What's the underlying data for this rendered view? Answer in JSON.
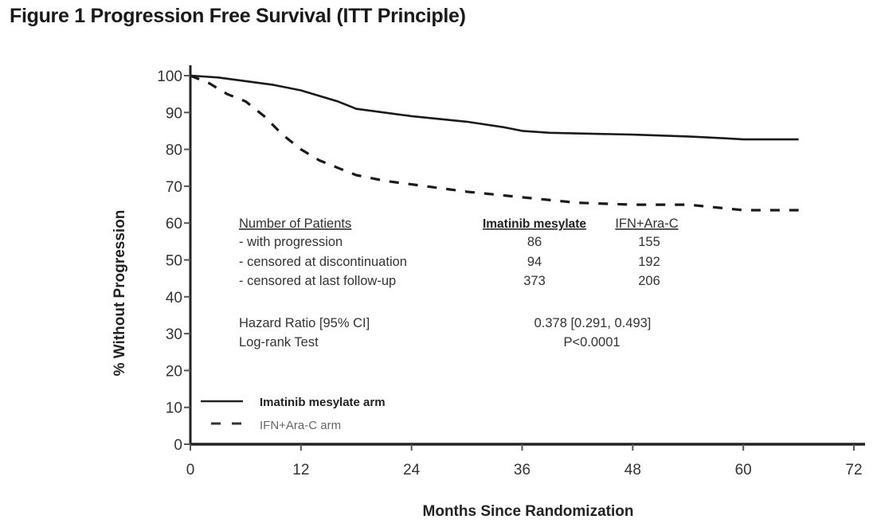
{
  "figure": {
    "title": "Figure 1 Progression Free Survival (ITT Principle)"
  },
  "chart_data": {
    "type": "line",
    "title": "Figure 1 Progression Free Survival (ITT Principle)",
    "xlabel": "Months Since Randomization",
    "ylabel": "% Without Progression",
    "xlim": [
      0,
      72
    ],
    "ylim": [
      0,
      100
    ],
    "xticks": [
      0,
      12,
      24,
      36,
      48,
      60,
      72
    ],
    "yticks": [
      0,
      10,
      20,
      30,
      40,
      50,
      60,
      70,
      80,
      90,
      100
    ],
    "grid": false,
    "legend_position": "bottom-left",
    "series": [
      {
        "name": "Imatinib mesylate arm",
        "style": "solid",
        "x": [
          0,
          3,
          6,
          9,
          12,
          14,
          16,
          18,
          21,
          24,
          30,
          34,
          36,
          39,
          48,
          54,
          58,
          60,
          66
        ],
        "y": [
          100,
          99.5,
          98.5,
          97.5,
          96,
          94.5,
          93,
          91,
          90,
          89,
          87.5,
          86,
          85,
          84.5,
          84,
          83.5,
          83,
          82.7,
          82.7
        ]
      },
      {
        "name": "IFN+Ara-C arm",
        "style": "dashed",
        "x": [
          0,
          2,
          4,
          6,
          8,
          10,
          12,
          14,
          16,
          18,
          21,
          24,
          30,
          36,
          42,
          48,
          54,
          58,
          60,
          66
        ],
        "y": [
          100,
          98,
          95,
          93,
          89,
          84,
          80,
          77,
          75,
          73,
          71.5,
          70.5,
          68.5,
          67,
          65.5,
          65,
          65,
          64,
          63.5,
          63.5
        ]
      }
    ],
    "annotation_table": {
      "header": "Number of Patients",
      "columns": [
        "Imatinib mesylate",
        "IFN+Ara-C"
      ],
      "rows": [
        {
          "label": "- with progression",
          "values": [
            "86",
            "155"
          ]
        },
        {
          "label": "- censored at discontinuation",
          "values": [
            "94",
            "192"
          ]
        },
        {
          "label": "- censored at last follow-up",
          "values": [
            "373",
            "206"
          ]
        }
      ],
      "stats": [
        {
          "label": "Hazard Ratio [95% CI]",
          "value": "0.378 [0.291, 0.493]"
        },
        {
          "label": "Log-rank Test",
          "value": "P<0.0001"
        }
      ]
    }
  }
}
